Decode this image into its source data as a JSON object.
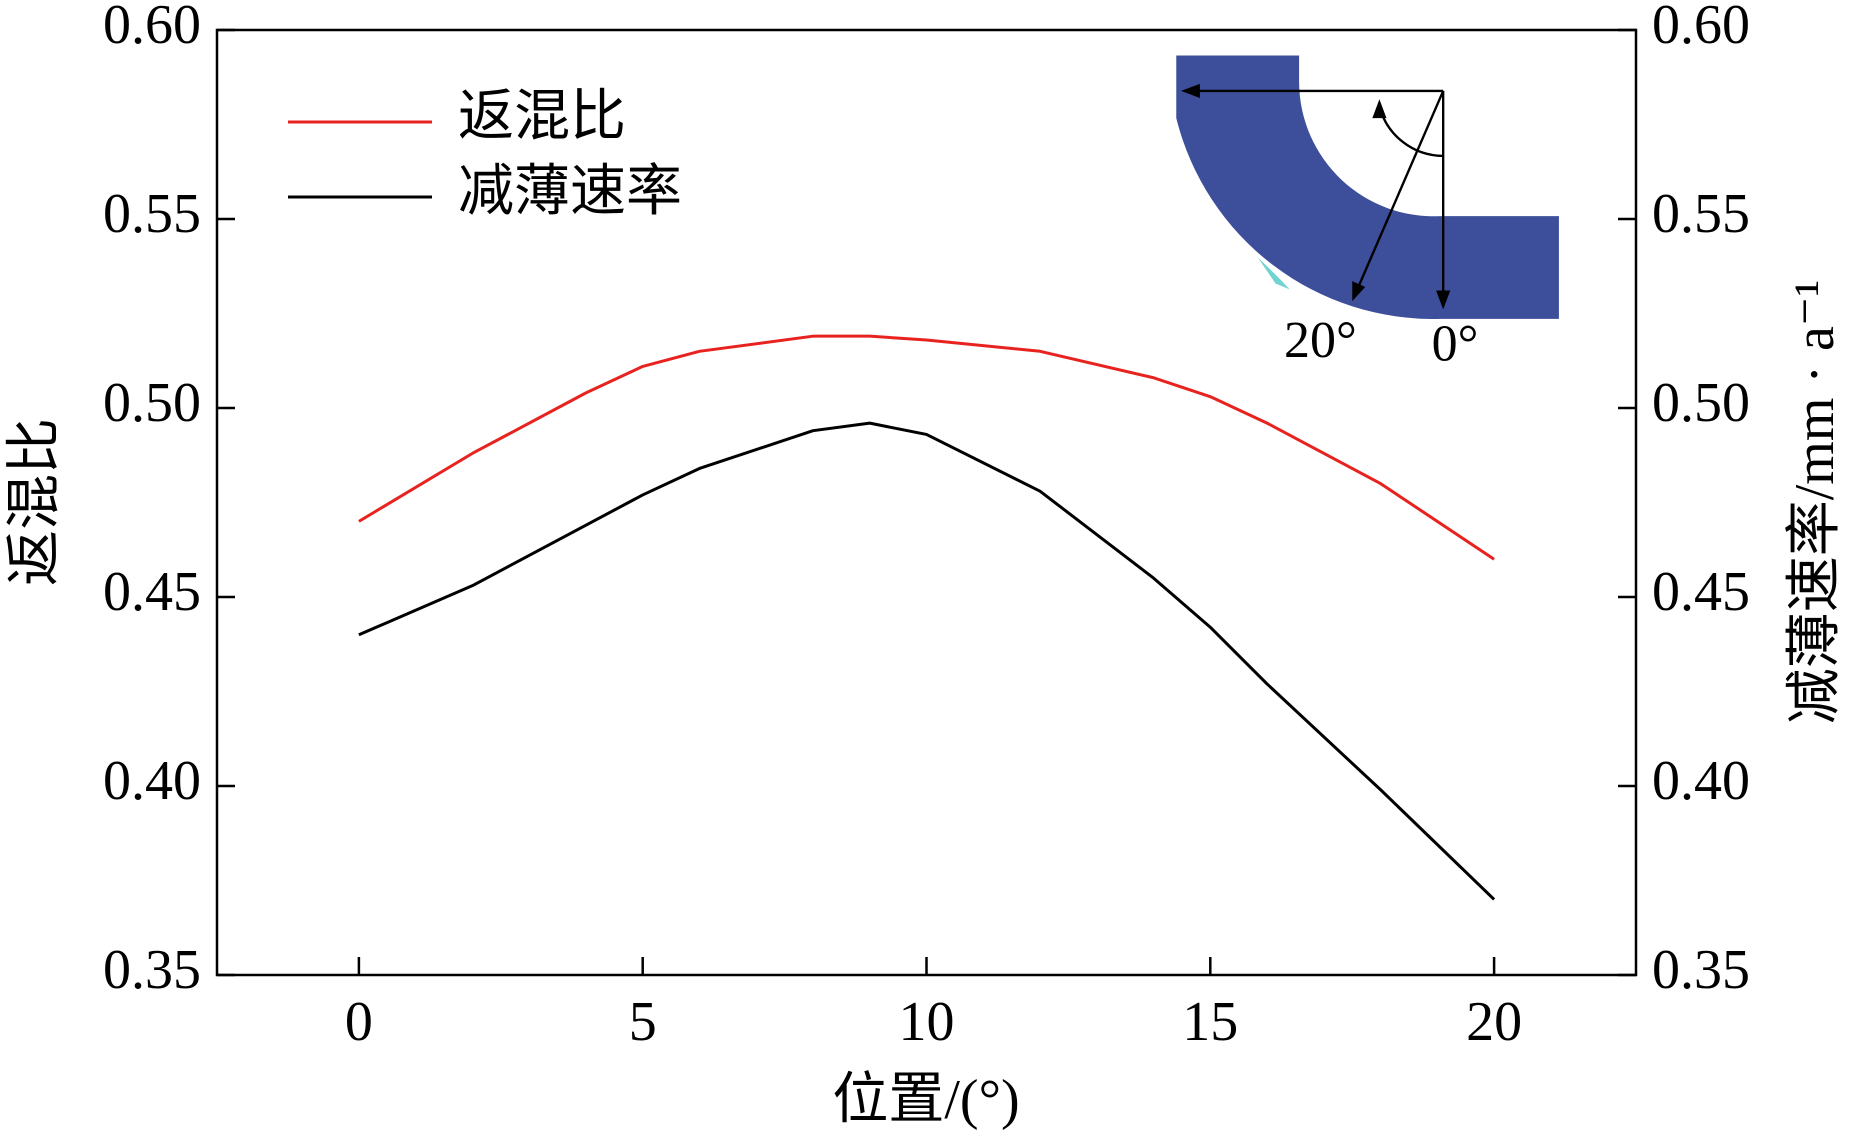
{
  "chart_data": {
    "type": "line",
    "xlabel": "位置/(°)",
    "ylabel": "返混比",
    "y2label": "减薄速率/mm · a⁻¹",
    "x": [
      0,
      2,
      4,
      5,
      6,
      8,
      9,
      10,
      12,
      14,
      15,
      16,
      18,
      20
    ],
    "series": [
      {
        "name": "返混比",
        "color": "#e8231f",
        "values": [
          0.47,
          0.488,
          0.504,
          0.511,
          0.515,
          0.519,
          0.519,
          0.518,
          0.515,
          0.508,
          0.503,
          0.496,
          0.48,
          0.46
        ]
      },
      {
        "name": "减薄速率",
        "color": "#000000",
        "axis": "y2",
        "values": [
          0.44,
          0.453,
          0.469,
          0.477,
          0.484,
          0.494,
          0.496,
          0.493,
          0.478,
          0.455,
          0.442,
          0.427,
          0.399,
          0.37
        ]
      }
    ],
    "xlim": [
      -2.5,
      22.5
    ],
    "xticks": [
      0,
      5,
      10,
      15,
      20
    ],
    "ylim": [
      0.35,
      0.6
    ],
    "yticks": [
      0.35,
      {
        "value": 0.4,
        "label": "0.40"
      },
      0.45,
      {
        "value": 0.5,
        "label": "0.50"
      },
      0.55,
      {
        "value": 0.6,
        "label": "0.60"
      }
    ],
    "y2lim": [
      0.35,
      0.6
    ],
    "y2ticks": [
      0.35,
      {
        "value": 0.4,
        "label": "0.40"
      },
      0.45,
      {
        "value": 0.5,
        "label": "0.50"
      },
      0.55,
      {
        "value": 0.6,
        "label": "0.60"
      }
    ],
    "legend": "upper left",
    "inset_labels": [
      "20°",
      "0°"
    ]
  }
}
